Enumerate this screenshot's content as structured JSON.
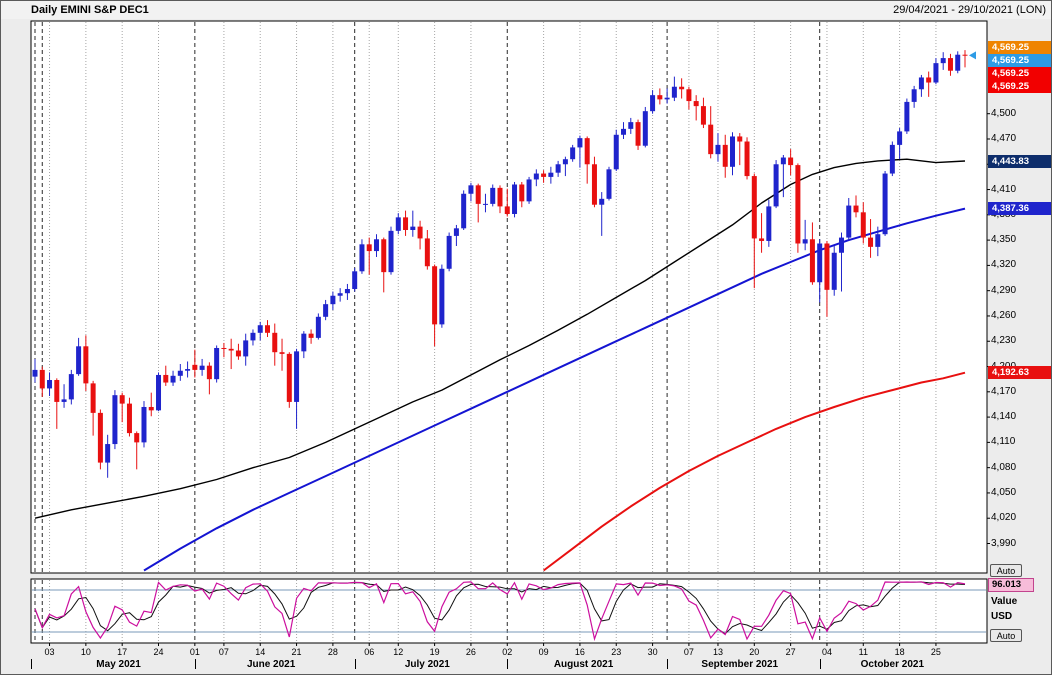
{
  "header": {
    "title": "Daily EMINI S&P DEC1",
    "date_range": "29/04/2021 - 29/10/2021 (LON)"
  },
  "side_panel": {
    "auto_top": "Auto",
    "auto_bottom": "Auto",
    "value_label": "Value",
    "currency_label": "USD"
  },
  "colors": {
    "up": "#1f24cc",
    "down": "#e81010",
    "grid_dotted": "#a6a6a6",
    "grid_dashed": "#2a2a2a",
    "pane_bg": "#ffffff",
    "pane_border": "#000000",
    "frame_bg": "#ececec",
    "band": "#7a9ab8"
  },
  "chart_data": {
    "type": "candlestick",
    "title": "Daily EMINI S&P DEC1",
    "timeframe": "Daily",
    "symbol": "EMINI S&P DEC1",
    "session": "LON",
    "date_range": [
      "29/04/2021",
      "29/10/2021"
    ],
    "y_axis": {
      "min": 3955,
      "max": 4610,
      "ticks": [
        3990,
        4020,
        4050,
        4080,
        4110,
        4140,
        4170,
        4200,
        4230,
        4260,
        4290,
        4320,
        4350,
        4380,
        4410,
        4440,
        4470,
        4500
      ]
    },
    "last_price": {
      "value": 4569.25,
      "label": "4,569.25"
    },
    "price_markers": [
      {
        "label": "4,569.25",
        "bg": "#ef8400"
      },
      {
        "label": "4,569.25",
        "bg": "#2d9be5"
      },
      {
        "label": "4,569.25",
        "bg": "#f20000"
      },
      {
        "label": "4,569.25",
        "bg": "#f20000"
      }
    ],
    "ma_markers": [
      {
        "label": "4,443.83",
        "value": 4443.83,
        "bg": "#0d2d6b"
      },
      {
        "label": "4,387.36",
        "value": 4387.36,
        "bg": "#1f24cc"
      },
      {
        "label": "4,192.63",
        "value": 4192.63,
        "bg": "#e81010"
      }
    ],
    "candles": [
      [
        4188,
        4209,
        4181,
        4196
      ],
      [
        4196,
        4200,
        4164,
        4174
      ],
      [
        4174,
        4193,
        4165,
        4184
      ],
      [
        4184,
        4186,
        4126,
        4158
      ],
      [
        4158,
        4179,
        4151,
        4161
      ],
      [
        4161,
        4196,
        4155,
        4191
      ],
      [
        4191,
        4234,
        4189,
        4224
      ],
      [
        4224,
        4237,
        4171,
        4180
      ],
      [
        4180,
        4183,
        4118,
        4145
      ],
      [
        4145,
        4149,
        4078,
        4086
      ],
      [
        4086,
        4119,
        4068,
        4108
      ],
      [
        4108,
        4172,
        4102,
        4166
      ],
      [
        4166,
        4169,
        4134,
        4156
      ],
      [
        4156,
        4163,
        4117,
        4121
      ],
      [
        4121,
        4123,
        4078,
        4110
      ],
      [
        4110,
        4159,
        4104,
        4152
      ],
      [
        4152,
        4169,
        4141,
        4148
      ],
      [
        4148,
        4193,
        4147,
        4190
      ],
      [
        4190,
        4201,
        4177,
        4181
      ],
      [
        4181,
        4195,
        4177,
        4189
      ],
      [
        4189,
        4203,
        4183,
        4195
      ],
      [
        4195,
        4206,
        4187,
        4197
      ],
      [
        4202,
        4220,
        4187,
        4196
      ],
      [
        4196,
        4209,
        4189,
        4201
      ],
      [
        4201,
        4205,
        4167,
        4185
      ],
      [
        4185,
        4225,
        4181,
        4222
      ],
      [
        4222,
        4228,
        4211,
        4221
      ],
      [
        4221,
        4233,
        4197,
        4219
      ],
      [
        4219,
        4227,
        4208,
        4212
      ],
      [
        4212,
        4239,
        4201,
        4231
      ],
      [
        4231,
        4244,
        4225,
        4240
      ],
      [
        4240,
        4253,
        4231,
        4249
      ],
      [
        4249,
        4255,
        4235,
        4240
      ],
      [
        4240,
        4251,
        4201,
        4217
      ],
      [
        4217,
        4233,
        4195,
        4215
      ],
      [
        4215,
        4217,
        4151,
        4158
      ],
      [
        4158,
        4221,
        4126,
        4218
      ],
      [
        4218,
        4242,
        4210,
        4239
      ],
      [
        4239,
        4244,
        4227,
        4234
      ],
      [
        4234,
        4263,
        4232,
        4259
      ],
      [
        4259,
        4279,
        4255,
        4274
      ],
      [
        4274,
        4289,
        4267,
        4284
      ],
      [
        4284,
        4293,
        4277,
        4287
      ],
      [
        4287,
        4298,
        4279,
        4292
      ],
      [
        4292,
        4317,
        4289,
        4313
      ],
      [
        4313,
        4351,
        4310,
        4345
      ],
      [
        4345,
        4353,
        4309,
        4337
      ],
      [
        4337,
        4357,
        4330,
        4351
      ],
      [
        4351,
        4353,
        4288,
        4312
      ],
      [
        4312,
        4366,
        4309,
        4361
      ],
      [
        4361,
        4382,
        4357,
        4377
      ],
      [
        4377,
        4385,
        4355,
        4362
      ],
      [
        4362,
        4385,
        4354,
        4366
      ],
      [
        4366,
        4373,
        4339,
        4352
      ],
      [
        4352,
        4362,
        4315,
        4319
      ],
      [
        4319,
        4321,
        4224,
        4250
      ],
      [
        4250,
        4321,
        4246,
        4316
      ],
      [
        4316,
        4359,
        4313,
        4355
      ],
      [
        4355,
        4368,
        4343,
        4364
      ],
      [
        4364,
        4409,
        4362,
        4405
      ],
      [
        4405,
        4418,
        4396,
        4415
      ],
      [
        4415,
        4417,
        4371,
        4393
      ],
      [
        4393,
        4405,
        4383,
        4393
      ],
      [
        4393,
        4416,
        4390,
        4412
      ],
      [
        4412,
        4415,
        4382,
        4390
      ],
      [
        4390,
        4411,
        4378,
        4381
      ],
      [
        4381,
        4419,
        4377,
        4416
      ],
      [
        4416,
        4419,
        4389,
        4396
      ],
      [
        4396,
        4425,
        4393,
        4422
      ],
      [
        4422,
        4434,
        4414,
        4429
      ],
      [
        4429,
        4433,
        4418,
        4425
      ],
      [
        4425,
        4437,
        4417,
        4430
      ],
      [
        4430,
        4444,
        4425,
        4440
      ],
      [
        4440,
        4449,
        4426,
        4446
      ],
      [
        4446,
        4463,
        4443,
        4460
      ],
      [
        4460,
        4474,
        4436,
        4471
      ],
      [
        4471,
        4473,
        4417,
        4440
      ],
      [
        4440,
        4449,
        4389,
        4392
      ],
      [
        4392,
        4407,
        4355,
        4399
      ],
      [
        4399,
        4437,
        4397,
        4434
      ],
      [
        4434,
        4481,
        4432,
        4475
      ],
      [
        4475,
        4490,
        4470,
        4482
      ],
      [
        4482,
        4495,
        4476,
        4490
      ],
      [
        4490,
        4493,
        4457,
        4462
      ],
      [
        4462,
        4508,
        4460,
        4503
      ],
      [
        4503,
        4528,
        4500,
        4522
      ],
      [
        4522,
        4530,
        4511,
        4517
      ],
      [
        4517,
        4530,
        4512,
        4519
      ],
      [
        4519,
        4544,
        4515,
        4532
      ],
      [
        4532,
        4542,
        4518,
        4529
      ],
      [
        4529,
        4532,
        4505,
        4515
      ],
      [
        4515,
        4522,
        4492,
        4509
      ],
      [
        4509,
        4519,
        4483,
        4487
      ],
      [
        4487,
        4509,
        4447,
        4452
      ],
      [
        4452,
        4477,
        4443,
        4463
      ],
      [
        4463,
        4475,
        4424,
        4437
      ],
      [
        4437,
        4478,
        4427,
        4473
      ],
      [
        4473,
        4477,
        4439,
        4467
      ],
      [
        4467,
        4472,
        4422,
        4426
      ],
      [
        4426,
        4429,
        4293,
        4352
      ],
      [
        4352,
        4382,
        4335,
        4349
      ],
      [
        4349,
        4398,
        4342,
        4390
      ],
      [
        4390,
        4445,
        4388,
        4440
      ],
      [
        4440,
        4451,
        4401,
        4448
      ],
      [
        4448,
        4458,
        4427,
        4439
      ],
      [
        4439,
        4441,
        4335,
        4346
      ],
      [
        4346,
        4374,
        4338,
        4351
      ],
      [
        4351,
        4371,
        4297,
        4300
      ],
      [
        4300,
        4351,
        4276,
        4346
      ],
      [
        4346,
        4349,
        4259,
        4291
      ],
      [
        4291,
        4343,
        4284,
        4335
      ],
      [
        4335,
        4359,
        4289,
        4353
      ],
      [
        4353,
        4400,
        4350,
        4391
      ],
      [
        4391,
        4403,
        4377,
        4383
      ],
      [
        4383,
        4395,
        4346,
        4353
      ],
      [
        4353,
        4375,
        4329,
        4342
      ],
      [
        4342,
        4366,
        4331,
        4357
      ],
      [
        4357,
        4432,
        4355,
        4429
      ],
      [
        4429,
        4467,
        4426,
        4463
      ],
      [
        4463,
        4483,
        4446,
        4479
      ],
      [
        4479,
        4518,
        4476,
        4514
      ],
      [
        4514,
        4533,
        4507,
        4529
      ],
      [
        4529,
        4546,
        4520,
        4543
      ],
      [
        4543,
        4550,
        4520,
        4537
      ],
      [
        4537,
        4566,
        4535,
        4560
      ],
      [
        4560,
        4573,
        4552,
        4566
      ],
      [
        4566,
        4571,
        4545,
        4551
      ],
      [
        4551,
        4574,
        4548,
        4570
      ],
      [
        4570,
        4575.5,
        4555,
        4569.25
      ]
    ],
    "x_ticks": [
      {
        "label": "03",
        "i": 2
      },
      {
        "label": "10",
        "i": 7
      },
      {
        "label": "17",
        "i": 12
      },
      {
        "label": "24",
        "i": 17
      },
      {
        "label": "01",
        "i": 22
      },
      {
        "label": "07",
        "i": 26
      },
      {
        "label": "14",
        "i": 31
      },
      {
        "label": "21",
        "i": 36
      },
      {
        "label": "28",
        "i": 41
      },
      {
        "label": "06",
        "i": 46
      },
      {
        "label": "12",
        "i": 50
      },
      {
        "label": "19",
        "i": 55
      },
      {
        "label": "26",
        "i": 60
      },
      {
        "label": "02",
        "i": 65
      },
      {
        "label": "09",
        "i": 70
      },
      {
        "label": "16",
        "i": 75
      },
      {
        "label": "23",
        "i": 80
      },
      {
        "label": "30",
        "i": 85
      },
      {
        "label": "07",
        "i": 90
      },
      {
        "label": "13",
        "i": 94
      },
      {
        "label": "20",
        "i": 99
      },
      {
        "label": "27",
        "i": 104
      },
      {
        "label": "04",
        "i": 109
      },
      {
        "label": "11",
        "i": 114
      },
      {
        "label": "18",
        "i": 119
      },
      {
        "label": "25",
        "i": 124
      }
    ],
    "months": [
      {
        "label": "May 2021",
        "start": 2,
        "end": 21
      },
      {
        "label": "June 2021",
        "start": 22,
        "end": 43
      },
      {
        "label": "July 2021",
        "start": 44,
        "end": 64
      },
      {
        "label": "August 2021",
        "start": 65,
        "end": 86
      },
      {
        "label": "September 2021",
        "start": 87,
        "end": 107
      },
      {
        "label": "October 2021",
        "start": 108,
        "end": 128
      }
    ],
    "month_lines": [
      0,
      1,
      22,
      44,
      65,
      87,
      108
    ],
    "overlays": [
      {
        "name": "moving-average-black",
        "color": "#000000",
        "width": 1.4,
        "points": [
          [
            0,
            4020
          ],
          [
            5,
            4030
          ],
          [
            10,
            4038
          ],
          [
            15,
            4046
          ],
          [
            20,
            4055
          ],
          [
            25,
            4066
          ],
          [
            30,
            4080
          ],
          [
            35,
            4092
          ],
          [
            40,
            4110
          ],
          [
            44,
            4126
          ],
          [
            48,
            4142
          ],
          [
            52,
            4158
          ],
          [
            56,
            4172
          ],
          [
            60,
            4190
          ],
          [
            64,
            4208
          ],
          [
            68,
            4225
          ],
          [
            72,
            4243
          ],
          [
            76,
            4262
          ],
          [
            80,
            4282
          ],
          [
            84,
            4302
          ],
          [
            88,
            4324
          ],
          [
            92,
            4346
          ],
          [
            96,
            4368
          ],
          [
            100,
            4394
          ],
          [
            104,
            4416
          ],
          [
            107,
            4428
          ],
          [
            110,
            4436
          ],
          [
            113,
            4441
          ],
          [
            116,
            4444
          ],
          [
            120,
            4446
          ],
          [
            124,
            4442
          ],
          [
            128,
            4443.83
          ]
        ]
      },
      {
        "name": "moving-average-blue",
        "color": "#1414d2",
        "width": 2,
        "points": [
          [
            15,
            3958
          ],
          [
            20,
            3984
          ],
          [
            25,
            4008
          ],
          [
            30,
            4030
          ],
          [
            35,
            4050
          ],
          [
            40,
            4070
          ],
          [
            44,
            4086
          ],
          [
            48,
            4102
          ],
          [
            52,
            4118
          ],
          [
            56,
            4134
          ],
          [
            60,
            4150
          ],
          [
            64,
            4166
          ],
          [
            68,
            4182
          ],
          [
            72,
            4198
          ],
          [
            76,
            4214
          ],
          [
            80,
            4230
          ],
          [
            84,
            4246
          ],
          [
            88,
            4262
          ],
          [
            92,
            4278
          ],
          [
            96,
            4294
          ],
          [
            100,
            4310
          ],
          [
            104,
            4324
          ],
          [
            108,
            4338
          ],
          [
            112,
            4350
          ],
          [
            116,
            4360
          ],
          [
            120,
            4370
          ],
          [
            124,
            4379
          ],
          [
            128,
            4387.36
          ]
        ]
      },
      {
        "name": "moving-average-red",
        "color": "#e81010",
        "width": 2,
        "points": [
          [
            70,
            3958
          ],
          [
            74,
            3984
          ],
          [
            78,
            4010
          ],
          [
            82,
            4034
          ],
          [
            86,
            4056
          ],
          [
            90,
            4076
          ],
          [
            94,
            4094
          ],
          [
            98,
            4110
          ],
          [
            102,
            4126
          ],
          [
            106,
            4140
          ],
          [
            110,
            4152
          ],
          [
            114,
            4163
          ],
          [
            118,
            4172
          ],
          [
            122,
            4181
          ],
          [
            125,
            4186
          ],
          [
            128,
            4192.63
          ]
        ]
      }
    ],
    "indicator": {
      "type": "stochastic",
      "k_period": 10,
      "d_period": 3,
      "overbought": 85,
      "oversold": 15,
      "value": 96.013,
      "value_label": "96.013",
      "k_color": "#cc0f9e",
      "d_color": "#111111"
    }
  }
}
